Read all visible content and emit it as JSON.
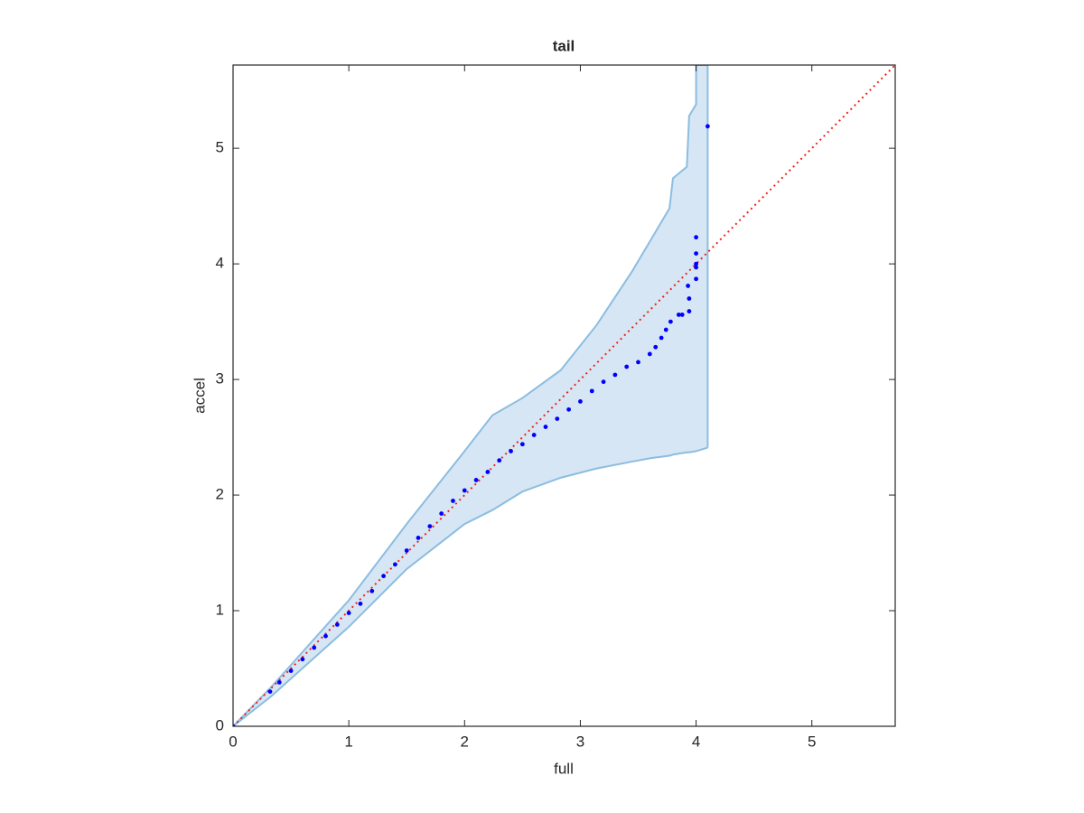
{
  "chart_data": {
    "type": "qqplot",
    "title": "tail",
    "xlabel": "full",
    "ylabel": "accel",
    "xlim": [
      0,
      5.72
    ],
    "ylim": [
      0,
      5.72
    ],
    "xticks": [
      0,
      1,
      2,
      3,
      4,
      5
    ],
    "yticks": [
      0,
      1,
      2,
      3,
      4,
      5
    ],
    "series": [
      {
        "color": "#0000ff",
        "x": [
          0,
          0.32,
          0.4,
          0.5,
          0.6,
          0.7,
          0.8,
          0.9,
          1.0,
          1.1,
          1.2,
          1.3,
          1.4,
          1.5,
          1.6,
          1.7,
          1.8,
          1.9,
          2.0,
          2.1,
          2.2,
          2.3,
          2.4,
          2.5,
          2.6,
          2.7,
          2.8,
          2.9,
          3.0,
          3.1,
          3.2,
          3.3,
          3.4,
          3.5,
          3.6,
          3.65,
          3.7,
          3.74,
          3.78,
          3.85,
          3.88,
          3.94,
          3.94,
          3.93,
          4.0,
          4.0,
          4.0,
          4.0,
          4.0,
          4.1
        ],
        "y": [
          0,
          0.3,
          0.38,
          0.48,
          0.58,
          0.68,
          0.78,
          0.88,
          0.98,
          1.06,
          1.17,
          1.3,
          1.4,
          1.52,
          1.63,
          1.73,
          1.84,
          1.95,
          2.04,
          2.13,
          2.2,
          2.3,
          2.38,
          2.44,
          2.52,
          2.59,
          2.66,
          2.74,
          2.81,
          2.9,
          2.98,
          3.04,
          3.11,
          3.15,
          3.22,
          3.28,
          3.36,
          3.43,
          3.5,
          3.56,
          3.56,
          3.59,
          3.7,
          3.81,
          3.87,
          3.97,
          4.0,
          4.09,
          4.23,
          5.19
        ]
      }
    ],
    "band": {
      "fill": "#d6e6f4",
      "edge": "#8cbde0",
      "x": [
        0,
        0.33,
        1,
        1.5,
        2,
        2.24,
        2.5,
        2.83,
        3.14,
        3.45,
        3.61,
        3.77,
        3.8,
        3.92,
        3.94,
        4.0,
        4.0,
        4.1
      ],
      "upper": [
        0,
        0.34,
        1.09,
        1.75,
        2.38,
        2.69,
        2.84,
        3.08,
        3.47,
        3.94,
        4.21,
        4.48,
        4.74,
        4.84,
        5.28,
        5.38,
        5.72,
        5.72
      ],
      "lower": [
        0,
        0.26,
        0.86,
        1.36,
        1.75,
        1.87,
        2.03,
        2.15,
        2.23,
        2.29,
        2.32,
        2.34,
        2.35,
        2.37,
        2.37,
        2.38,
        2.38,
        2.41
      ]
    },
    "reference_line": {
      "color": "#e8261e",
      "x": [
        0,
        5.72
      ],
      "y": [
        0,
        5.72
      ]
    }
  }
}
